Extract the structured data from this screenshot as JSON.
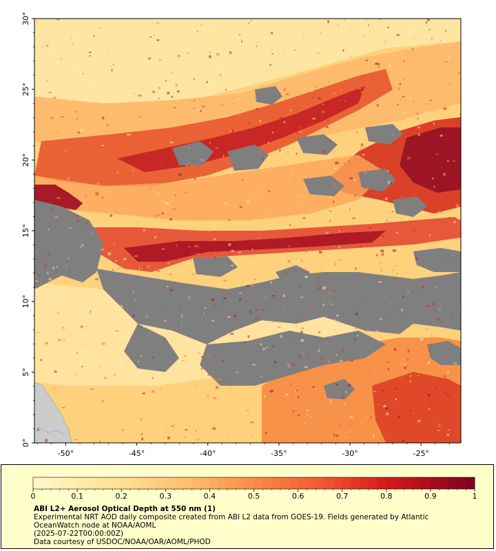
{
  "map": {
    "lat_labels": [
      "0°",
      "5°",
      "10°",
      "15°",
      "20°",
      "25°",
      "30°"
    ],
    "lon_labels": [
      "-50°",
      "-45°",
      "-40°",
      "-35°",
      "-30°",
      "-25°"
    ],
    "lat_range": [
      0,
      30
    ],
    "lon_range": [
      -52.2,
      -22.2
    ],
    "colors": {
      "no_data": "#7f7f7f",
      "land": "#cccccc",
      "low": "#ffefb5",
      "mid": "#fdae61",
      "high": "#d7191c",
      "max": "#7b0020"
    }
  },
  "colorbar": {
    "min": 0,
    "max": 1,
    "tick_labels": [
      "0",
      "0.1",
      "0.2",
      "0.3",
      "0.4",
      "0.5",
      "0.6",
      "0.7",
      "0.8",
      "0.9",
      "1"
    ]
  },
  "legend": {
    "title": "ABI L2+ Aerosol Optical Depth at 550 nm (1)",
    "description": "Experimental NRT AOD daily composite created from ABI L2 data from GOES-19. Fields generated by Atlantic OceanWatch node at NOAA/AOML",
    "timestamp": "(2025-07-22T00:00:00Z)",
    "credit": "Data courtesy of USDOC/NOAA/OAR/AOML/PHOD"
  }
}
